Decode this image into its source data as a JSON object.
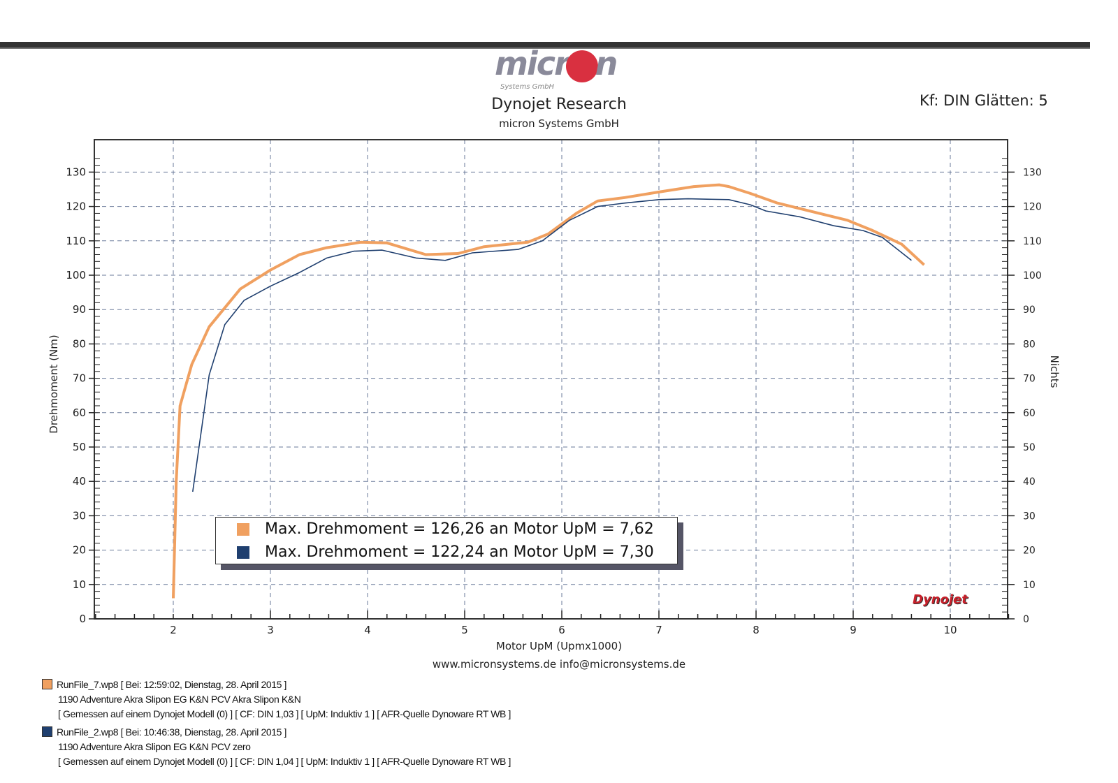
{
  "header": {
    "logo_text": "micron",
    "logo_sub": "Systems GmbH",
    "title": "Dynojet Research",
    "subtitle": "micron Systems GmbH",
    "settings": "Kf: DIN Glätten: 5"
  },
  "footer": {
    "website": "www.micronsystems.de info@micronsystems.de",
    "dynojet_logo": "Dynojet",
    "runs": [
      {
        "color": "#f0a060",
        "file": "RunFile_7.wp8 [ Bei: 12:59:02, Dienstag, 28. April 2015 ]",
        "desc": "1190 Adventure Akra Slipon EG K&N PCV Akra Slipon K&N",
        "info": "[ Gemessen auf einem Dynojet Modell (0) ]   [ CF: DIN 1,03 ]   [ UpM: Induktiv 1 ]   [ AFR-Quelle  Dynoware RT WB ]"
      },
      {
        "color": "#1f3f6f",
        "file": "RunFile_2.wp8 [ Bei: 10:46:38, Dienstag, 28. April 2015 ]",
        "desc": "1190 Adventure Akra Slipon EG K&N PCV zero",
        "info": "[ Gemessen auf einem Dynojet Modell (0) ]   [ CF: DIN 1,04 ]   [ UpM: Induktiv 1 ]   [ AFR-Quelle  Dynoware RT WB ]"
      }
    ]
  },
  "chart_data": {
    "type": "line",
    "xlabel": "Motor UpM (Upmx1000)",
    "ylabel": "Drehmoment (Nm)",
    "y2label": "Nichts",
    "xlim": [
      1.2,
      10.6
    ],
    "ylim": [
      0,
      135
    ],
    "y2lim": [
      0,
      135
    ],
    "xticks": [
      "2",
      "3",
      "4",
      "5",
      "6",
      "7",
      "8",
      "9",
      "10"
    ],
    "yticks": [
      "0",
      "10",
      "20",
      "30",
      "40",
      "50",
      "60",
      "70",
      "80",
      "90",
      "100",
      "110",
      "120",
      "130"
    ],
    "grid": true,
    "legend": [
      "Max. Drehmoment = 126,26 an Motor UpM = 7,62",
      "Max. Drehmoment = 122,24 an Motor UpM = 7,30"
    ],
    "series": [
      {
        "color": "#f0a060",
        "x": [
          2.0,
          2.03,
          2.07,
          2.19,
          2.37,
          2.69,
          3.0,
          3.3,
          3.58,
          3.93,
          4.2,
          4.6,
          4.93,
          5.2,
          5.65,
          5.86,
          6.15,
          6.37,
          6.65,
          7.0,
          7.36,
          7.62,
          7.72,
          7.94,
          8.22,
          8.65,
          8.94,
          9.2,
          9.5,
          9.73
        ],
        "y": [
          6,
          40,
          62,
          74,
          85,
          96,
          101.5,
          106,
          108,
          109.6,
          109.4,
          106,
          106.3,
          108.3,
          109.6,
          112,
          118,
          121.6,
          122.6,
          124.2,
          125.8,
          126.3,
          125.8,
          123.8,
          121,
          118,
          116,
          113,
          109,
          103
        ]
      },
      {
        "color": "#1f3f6f",
        "x": [
          2.2,
          2.37,
          2.53,
          2.73,
          3.0,
          3.3,
          3.58,
          3.86,
          4.15,
          4.5,
          4.8,
          5.08,
          5.55,
          5.8,
          6.08,
          6.37,
          6.65,
          7.0,
          7.3,
          7.72,
          7.94,
          8.1,
          8.45,
          8.8,
          9.1,
          9.3,
          9.6
        ],
        "y": [
          37,
          71,
          85.6,
          92.7,
          96.8,
          100.8,
          105,
          107,
          107.3,
          105,
          104.3,
          106.5,
          107.5,
          110,
          116,
          120,
          121,
          122,
          122.24,
          122,
          120.5,
          118.7,
          117,
          114.4,
          113,
          111,
          104.3
        ]
      }
    ]
  }
}
